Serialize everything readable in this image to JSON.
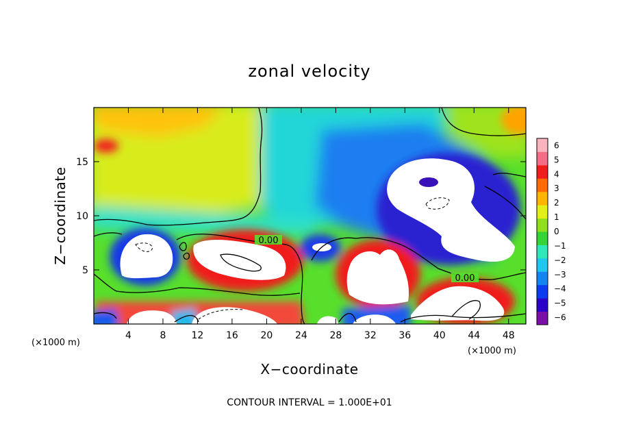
{
  "chart_data": {
    "type": "heatmap",
    "title": "zonal velocity",
    "xlabel": "X−coordinate",
    "ylabel": "Z−coordinate",
    "x_unit_label": "(×1000 m)",
    "y_unit_label": "(×1000 m)",
    "footer": "CONTOUR INTERVAL = 1.000E+01",
    "xlim": [
      0,
      50
    ],
    "ylim": [
      0,
      20
    ],
    "x_ticks": [
      4,
      8,
      12,
      16,
      20,
      24,
      28,
      32,
      36,
      40,
      44,
      48
    ],
    "y_ticks": [
      5,
      10,
      15
    ],
    "colorbar": {
      "min": -6,
      "max": 6,
      "tick_labels": [
        "6",
        "5",
        "4",
        "3",
        "2",
        "1",
        "0",
        "−1",
        "−2",
        "−3",
        "−4",
        "−5",
        "−6"
      ],
      "colors": [
        "#7b0fa8",
        "#2b00c8",
        "#0b3cf0",
        "#1384f2",
        "#1ec6f0",
        "#2fe8b8",
        "#36d437",
        "#8fe01e",
        "#e2f018",
        "#ffb400",
        "#ff6b00",
        "#f01d1d",
        "#f36d86",
        "#fbb3c0"
      ]
    },
    "contour_labels": [
      {
        "text": "0.00",
        "x": 19.3,
        "z": 7.8
      },
      {
        "text": "0.00",
        "x": 42.2,
        "z": 4.3
      }
    ],
    "grid": false,
    "features": [
      {
        "x": 6.8,
        "z": 6.5,
        "value": 13,
        "note": "white core beyond scale"
      },
      {
        "x": 16,
        "z": 6.2,
        "value": 15
      },
      {
        "x": 30,
        "z": 4.5,
        "value": 13
      },
      {
        "x": 42,
        "z": 2.0,
        "value": 12
      },
      {
        "x": 41,
        "z": 10.8,
        "value": -13
      },
      {
        "x": 25.5,
        "z": 7.0,
        "value": -5
      },
      {
        "x": 15.5,
        "z": 16.0,
        "value": 2
      },
      {
        "x": 0.5,
        "z": 16.5,
        "value": 4.5
      }
    ]
  }
}
